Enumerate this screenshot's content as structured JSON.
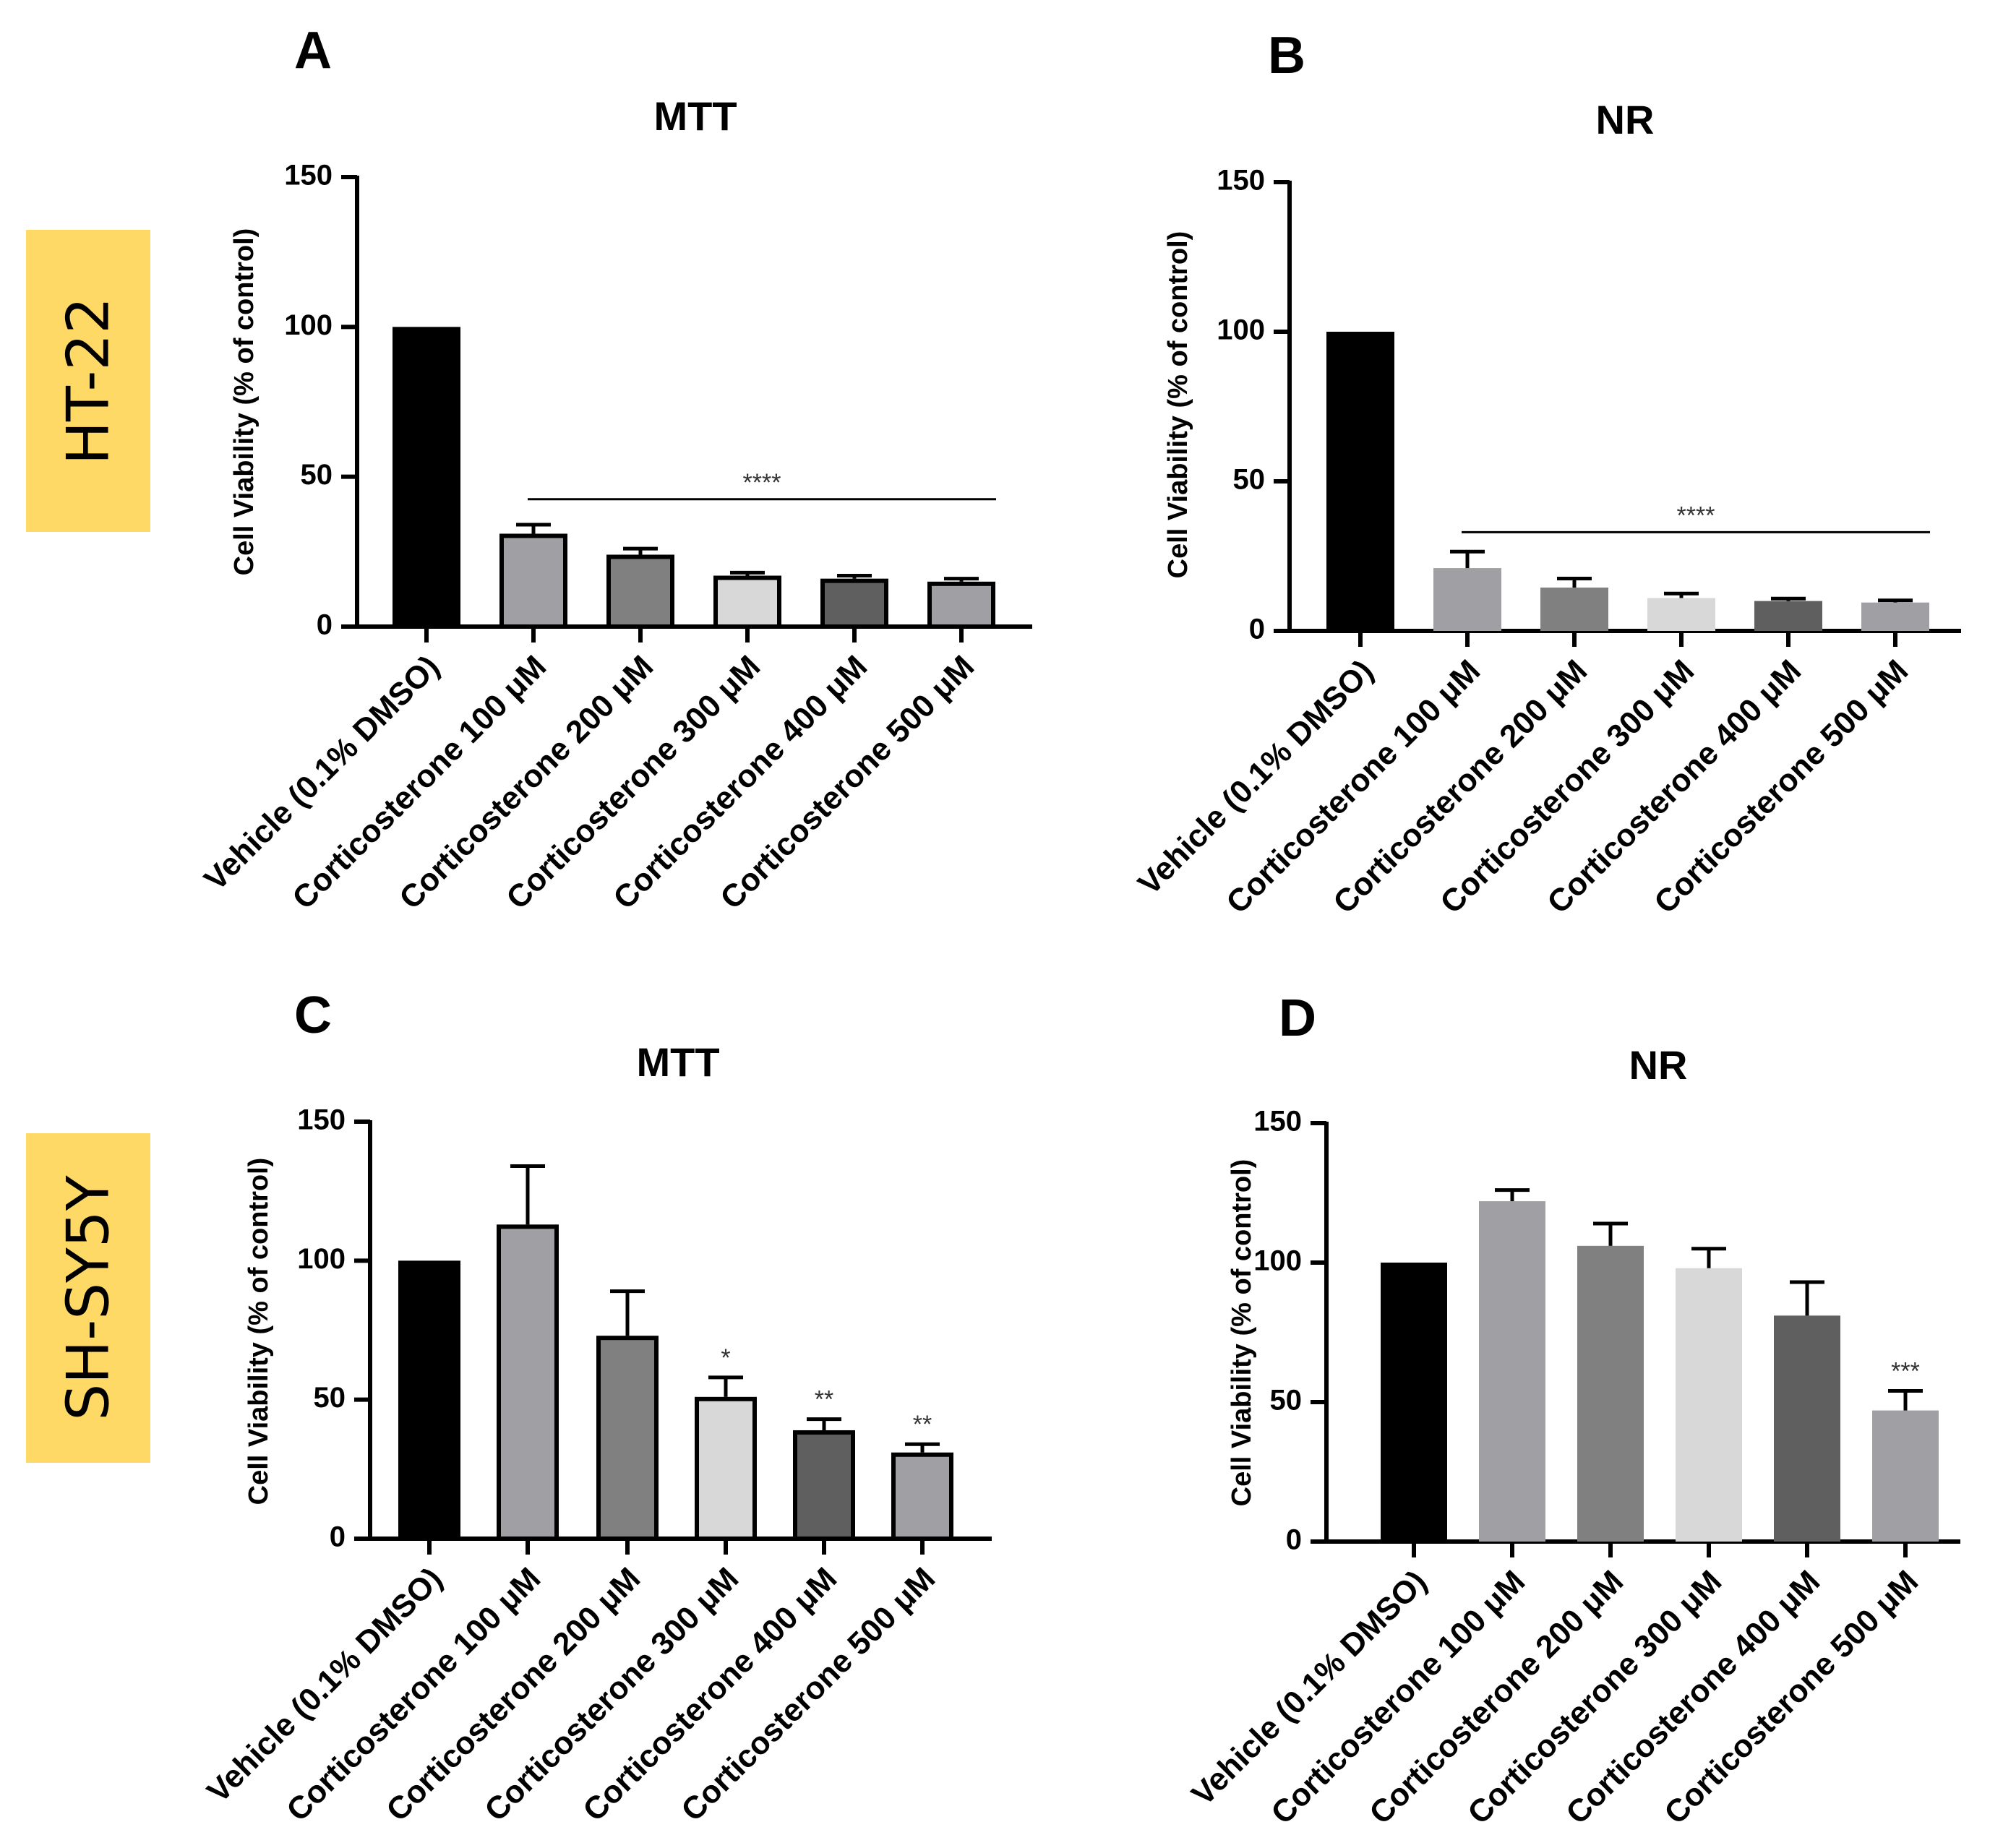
{
  "row_labels": [
    "HT-22",
    "SH-SY5Y"
  ],
  "chart_data": [
    {
      "panel": "A",
      "type": "bar",
      "title": "MTT",
      "xlabel": "",
      "ylabel": "Cell Viability (% of control)",
      "ylim": [
        0,
        150
      ],
      "yticks": [
        "0",
        "50",
        "100",
        "150"
      ],
      "categories": [
        "Vehicle (0.1% DMSO)",
        "Corticosterone 100 μM",
        "Corticosterone 200 μM",
        "Corticosterone 300 μM",
        "Corticosterone 400 μM",
        "Corticosterone 500 μM"
      ],
      "values": [
        100,
        31,
        24,
        17,
        16,
        15
      ],
      "errors": [
        0,
        3,
        2,
        1,
        1,
        1
      ],
      "colors": [
        "#000000",
        "#a0a0a4",
        "#808080",
        "#d8d8d8",
        "#5f5f5f",
        "#a0a0a4"
      ],
      "bar_outline": true,
      "bracket": {
        "from": 1,
        "to": 5,
        "value": 42.5,
        "label": "****"
      },
      "annotations": [
        "",
        "",
        "",
        "",
        "",
        ""
      ]
    },
    {
      "panel": "B",
      "type": "bar",
      "title": "NR",
      "xlabel": "",
      "ylabel": "Cell Viability (% of control)",
      "ylim": [
        0,
        150
      ],
      "yticks": [
        "0",
        "50",
        "100",
        "150"
      ],
      "categories": [
        "Vehicle (0.1% DMSO)",
        "Corticosterone 100 μM",
        "Corticosterone 200 μM",
        "Corticosterone 300 μM",
        "Corticosterone 400 μM",
        "Corticosterone 500 μM"
      ],
      "values": [
        100,
        21,
        14.5,
        11,
        10,
        9.5
      ],
      "errors": [
        0,
        5.5,
        3,
        1.5,
        0.8,
        0.7
      ],
      "colors": [
        "#000000",
        "#a0a0a4",
        "#808080",
        "#d8d8d8",
        "#5f5f5f",
        "#a0a0a4"
      ],
      "bar_outline": false,
      "bracket": {
        "from": 1,
        "to": 5,
        "value": 33,
        "label": "****"
      },
      "annotations": [
        "",
        "",
        "",
        "",
        "",
        ""
      ]
    },
    {
      "panel": "C",
      "type": "bar",
      "title": "MTT",
      "xlabel": "",
      "ylabel": "Cell Viability (% of control)",
      "ylim": [
        0,
        150
      ],
      "yticks": [
        "0",
        "50",
        "100",
        "150"
      ],
      "categories": [
        "Vehicle (0.1% DMSO)",
        "Corticosterone 100 μM",
        "Corticosterone 200 μM",
        "Corticosterone 300 μM",
        "Corticosterone 400 μM",
        "Corticosterone 500 μM"
      ],
      "values": [
        100,
        113,
        73,
        51,
        39,
        31
      ],
      "errors": [
        0,
        21,
        16,
        7,
        4,
        3
      ],
      "colors": [
        "#000000",
        "#a0a0a4",
        "#808080",
        "#d8d8d8",
        "#5f5f5f",
        "#a0a0a4"
      ],
      "bar_outline": true,
      "bracket": null,
      "annotations": [
        "",
        "",
        "",
        "*",
        "**",
        "**"
      ]
    },
    {
      "panel": "D",
      "type": "bar",
      "title": "NR",
      "xlabel": "",
      "ylabel": "Cell Viability (% of control)",
      "ylim": [
        0,
        150
      ],
      "yticks": [
        "0",
        "50",
        "100",
        "150"
      ],
      "categories": [
        "Vehicle (0.1% DMSO)",
        "Corticosterone 100 μM",
        "Corticosterone 200 μM",
        "Corticosterone 300 μM",
        "Corticosterone 400 μM",
        "Corticosterone 500 μM"
      ],
      "values": [
        100,
        122,
        106,
        98,
        81,
        47
      ],
      "errors": [
        0,
        4,
        8,
        7,
        12,
        7
      ],
      "colors": [
        "#000000",
        "#a0a0a4",
        "#808080",
        "#d8d8d8",
        "#5f5f5f",
        "#a0a0a4"
      ],
      "bar_outline": false,
      "bracket": null,
      "annotations": [
        "",
        "",
        "",
        "",
        "",
        "***"
      ]
    }
  ]
}
